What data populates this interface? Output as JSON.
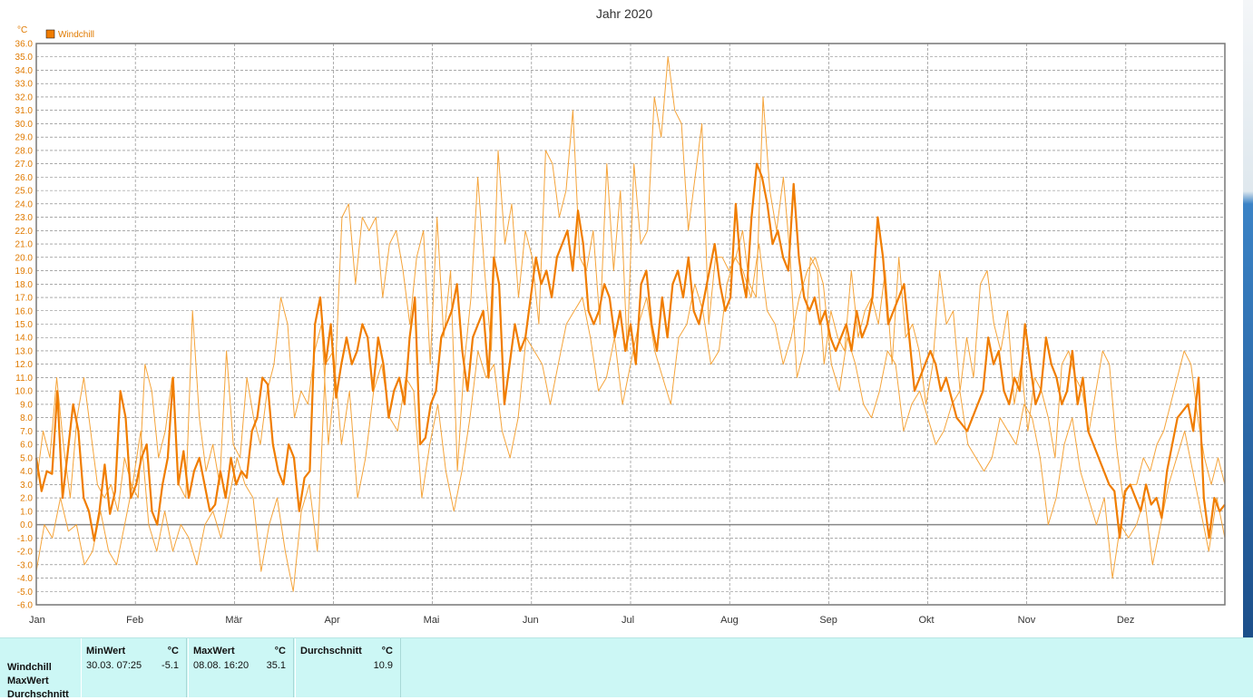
{
  "chart_data": {
    "type": "line",
    "title": "Jahr 2020",
    "ylabel": "°C",
    "ylim": [
      -6,
      36
    ],
    "ytick_step": 1,
    "months": [
      "Jan",
      "Feb",
      "Mär",
      "Apr",
      "Mai",
      "Jun",
      "Jul",
      "Aug",
      "Sep",
      "Okt",
      "Nov",
      "Dez"
    ],
    "grid": true,
    "legend_position": "top-left",
    "series": [
      {
        "name": "Windchill",
        "role": "mean",
        "color": "#f07d00",
        "values": [
          5.0,
          2.5,
          4.0,
          3.8,
          10.0,
          2.0,
          5.5,
          9.0,
          7.0,
          2.0,
          1.0,
          -1.2,
          1.0,
          4.5,
          0.8,
          2.5,
          10.0,
          8.0,
          2.0,
          3.0,
          5.0,
          6.0,
          1.0,
          0.0,
          3.0,
          5.0,
          11.0,
          3.0,
          5.5,
          2.0,
          4.0,
          5.0,
          3.0,
          1.0,
          1.5,
          4.0,
          2.0,
          5.0,
          3.0,
          4.0,
          3.5,
          7.0,
          8.0,
          11.0,
          10.5,
          6.0,
          4.0,
          3.0,
          6.0,
          5.0,
          1.0,
          3.5,
          4.0,
          15.0,
          17.0,
          12.0,
          15.0,
          9.5,
          12.0,
          14.0,
          12.0,
          13.0,
          15.0,
          14.0,
          10.0,
          14.0,
          12.0,
          8.0,
          10.0,
          11.0,
          9.0,
          14.0,
          17.0,
          6.0,
          6.5,
          9.0,
          10.0,
          14.0,
          15.0,
          16.0,
          18.0,
          13.0,
          10.0,
          14.0,
          15.0,
          16.0,
          11.0,
          20.0,
          18.0,
          9.0,
          12.0,
          15.0,
          13.0,
          14.0,
          17.0,
          20.0,
          18.0,
          19.0,
          17.0,
          20.0,
          21.0,
          22.0,
          19.0,
          23.5,
          21.0,
          16.0,
          15.0,
          16.0,
          18.0,
          17.0,
          14.0,
          16.0,
          13.0,
          15.0,
          12.0,
          18.0,
          19.0,
          15.0,
          13.0,
          17.0,
          14.0,
          18.0,
          19.0,
          17.0,
          20.0,
          16.0,
          15.0,
          17.0,
          19.0,
          21.0,
          18.0,
          16.0,
          17.0,
          24.0,
          19.0,
          17.0,
          23.0,
          27.0,
          26.0,
          24.0,
          21.0,
          22.0,
          20.0,
          19.0,
          25.5,
          20.0,
          17.0,
          16.0,
          17.0,
          15.0,
          16.0,
          14.0,
          13.0,
          14.0,
          15.0,
          13.0,
          16.0,
          14.0,
          15.0,
          17.0,
          23.0,
          20.0,
          15.0,
          16.0,
          17.0,
          18.0,
          14.0,
          10.0,
          11.0,
          12.0,
          13.0,
          12.0,
          10.0,
          11.0,
          9.5,
          8.0,
          7.5,
          7.0,
          8.0,
          9.0,
          10.0,
          14.0,
          12.0,
          13.0,
          10.0,
          9.0,
          11.0,
          10.0,
          15.0,
          12.0,
          9.0,
          10.0,
          14.0,
          12.0,
          11.0,
          9.0,
          10.0,
          13.0,
          9.0,
          11.0,
          7.0,
          6.0,
          5.0,
          4.0,
          3.0,
          2.5,
          -1.0,
          2.5,
          3.0,
          2.0,
          1.0,
          3.0,
          1.5,
          2.0,
          0.5,
          4.0,
          6.0,
          8.0,
          8.5,
          9.0,
          7.0,
          11.0,
          2.0,
          -1.0,
          2.0,
          1.0,
          1.5
        ],
        "points_per_day": 0.66
      },
      {
        "name": "MaxWert",
        "role": "max",
        "color": "#f5a43a",
        "values": [
          3.0,
          7.0,
          5.0,
          11.0,
          6.0,
          2.0,
          8.0,
          11.0,
          7.0,
          3.0,
          2.0,
          3.0,
          1.0,
          5.0,
          3.0,
          2.0,
          12.0,
          10.0,
          5.0,
          7.0,
          11.0,
          3.0,
          2.0,
          16.0,
          8.0,
          4.0,
          6.0,
          3.0,
          13.0,
          6.0,
          5.0,
          11.0,
          8.0,
          6.0,
          10.0,
          12.0,
          17.0,
          15.0,
          8.0,
          10.0,
          9.0,
          13.0,
          15.0,
          6.0,
          11.0,
          23.0,
          24.0,
          18.0,
          23.0,
          22.0,
          23.0,
          17.0,
          21.0,
          22.0,
          19.0,
          15.0,
          20.0,
          22.0,
          12.0,
          23.0,
          14.0,
          19.0,
          4.0,
          12.0,
          17.0,
          26.0,
          19.0,
          13.0,
          28.0,
          21.0,
          24.0,
          17.0,
          22.0,
          20.0,
          15.0,
          28.0,
          27.0,
          23.0,
          25.0,
          31.0,
          20.0,
          19.0,
          22.0,
          15.0,
          27.0,
          19.0,
          25.0,
          13.0,
          27.0,
          21.0,
          22.0,
          32.0,
          29.0,
          35.0,
          31.0,
          30.0,
          22.0,
          26.0,
          30.0,
          15.0,
          20.0,
          20.0,
          19.0,
          20.0,
          22.0,
          18.0,
          17.0,
          32.0,
          25.0,
          22.0,
          26.0,
          20.0,
          11.0,
          13.0,
          20.0,
          19.0,
          12.0,
          16.0,
          14.0,
          13.0,
          19.0,
          14.0,
          16.0,
          17.0,
          15.0,
          19.0,
          12.0,
          20.0,
          14.0,
          15.0,
          13.0,
          9.0,
          12.0,
          19.0,
          15.0,
          16.0,
          10.0,
          14.0,
          11.0,
          18.0,
          19.0,
          15.0,
          13.0,
          16.0,
          9.0,
          12.0,
          7.0,
          11.0,
          10.0,
          8.0,
          5.0,
          12.0,
          13.0,
          11.0,
          10.0,
          7.0,
          10.0,
          13.0,
          12.0,
          6.0,
          2.0,
          3.0,
          3.0,
          5.0,
          4.0,
          6.0,
          7.0,
          9.0,
          11.0,
          13.0,
          12.0,
          8.0,
          5.0,
          3.0,
          5.0,
          3.0
        ],
        "points_per_day": 0.5
      },
      {
        "name": "MinWert",
        "role": "min",
        "color": "#f5a43a",
        "values": [
          -3.5,
          0.0,
          -1.0,
          2.0,
          -0.5,
          0.0,
          -3.0,
          -2.0,
          1.0,
          -2.0,
          -3.0,
          0.0,
          3.0,
          7.0,
          0.0,
          -2.0,
          1.0,
          -2.0,
          0.0,
          -1.0,
          -3.0,
          0.0,
          1.0,
          -1.0,
          2.0,
          5.0,
          3.0,
          2.0,
          -3.5,
          0.0,
          2.0,
          -2.0,
          -5.0,
          1.0,
          3.0,
          -2.0,
          12.0,
          13.0,
          6.0,
          10.0,
          2.0,
          5.0,
          10.0,
          12.0,
          8.0,
          7.0,
          11.0,
          10.0,
          2.0,
          6.0,
          9.0,
          4.0,
          1.0,
          4.0,
          8.0,
          13.0,
          11.0,
          12.0,
          7.0,
          5.0,
          8.0,
          14.0,
          13.0,
          12.0,
          9.0,
          12.0,
          15.0,
          16.0,
          17.0,
          14.0,
          10.0,
          11.0,
          14.0,
          9.0,
          12.0,
          15.0,
          17.0,
          13.0,
          11.0,
          9.0,
          14.0,
          15.0,
          18.0,
          16.0,
          12.0,
          13.0,
          18.0,
          20.0,
          19.0,
          17.0,
          21.0,
          16.0,
          15.0,
          12.0,
          14.0,
          17.0,
          19.0,
          20.0,
          18.0,
          12.0,
          10.0,
          14.0,
          12.0,
          9.0,
          8.0,
          10.0,
          13.0,
          12.0,
          7.0,
          9.0,
          10.0,
          8.0,
          6.0,
          7.0,
          9.0,
          10.0,
          6.0,
          5.0,
          4.0,
          5.0,
          8.0,
          7.0,
          6.0,
          9.0,
          8.0,
          5.0,
          0.0,
          2.0,
          6.0,
          8.0,
          4.0,
          2.0,
          0.0,
          2.0,
          -4.0,
          0.0,
          -1.0,
          0.0,
          2.0,
          -3.0,
          0.0,
          3.0,
          5.0,
          7.0,
          4.0,
          1.0,
          -2.0,
          2.0,
          -1.0
        ],
        "points_per_day": 0.41
      }
    ],
    "zero_line": 0
  },
  "legend": {
    "label": "Windchill",
    "color": "#f07d00"
  },
  "y_unit": "°C",
  "stats": {
    "rows": [
      "Windchill",
      "MaxWert",
      "Durchschnitt"
    ],
    "columns": [
      {
        "head": "MinWert",
        "unit": "°C",
        "time": "30.03.  07:25",
        "value": "-5.1"
      },
      {
        "head": "MaxWert",
        "unit": "°C",
        "time": "08.08.  16:20",
        "value": "35.1"
      },
      {
        "head": "Durchschnitt",
        "unit": "°C",
        "time": "",
        "value": "10.9"
      }
    ]
  }
}
